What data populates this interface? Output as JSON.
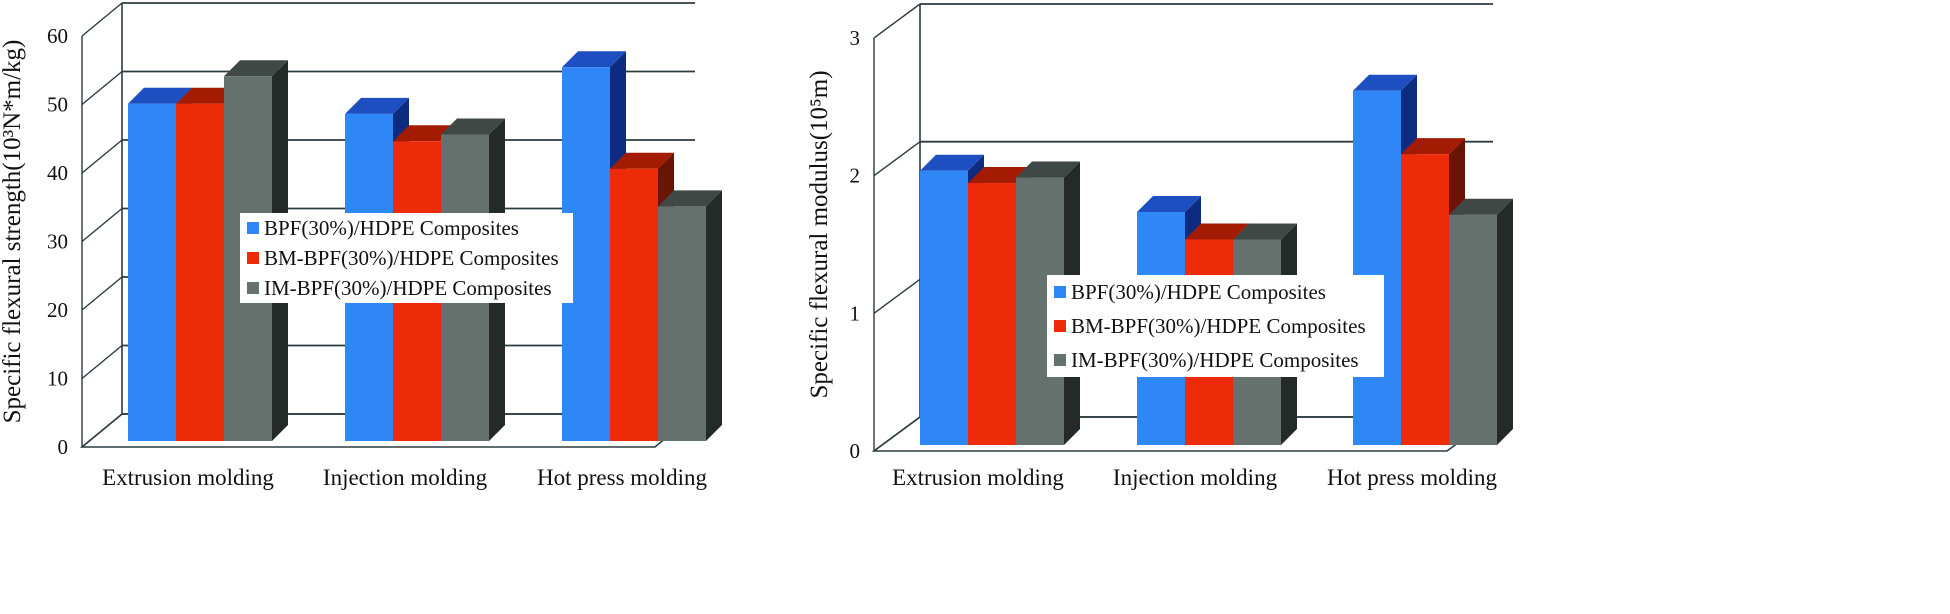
{
  "chart_data": [
    {
      "type": "bar",
      "title": "",
      "xlabel": "",
      "ylabel": "Specific flexural strength(10³N*m/kg)",
      "ylim": [
        0,
        60
      ],
      "yticks": [
        "0",
        "10",
        "20",
        "30",
        "40",
        "50",
        "60"
      ],
      "categories": [
        "Extrusion molding",
        "Injection molding",
        "Hot press molding"
      ],
      "series": [
        {
          "name": "BPF(30%)/HDPE Composites",
          "values": [
            51,
            49.5,
            56.3
          ]
        },
        {
          "name": "BM-BPF(30%)/HDPE Composites",
          "values": [
            51,
            45.5,
            41.5
          ]
        },
        {
          "name": "IM-BPF(30%)/HDPE Composites",
          "values": [
            55,
            46.5,
            36
          ]
        }
      ],
      "legend": "center"
    },
    {
      "type": "bar",
      "title": "",
      "xlabel": "",
      "ylabel": "Specific flexural modulus(10⁵m)",
      "ylim": [
        0,
        3
      ],
      "yticks": [
        "0",
        "1",
        "2",
        "3"
      ],
      "categories": [
        "Extrusion molding",
        "Injection molding",
        "Hot press molding"
      ],
      "series": [
        {
          "name": "BPF(30%)/HDPE Composites",
          "values": [
            2.08,
            1.78,
            2.66
          ]
        },
        {
          "name": "BM-BPF(30%)/HDPE Composites",
          "values": [
            1.99,
            1.58,
            2.2
          ]
        },
        {
          "name": "IM-BPF(30%)/HDPE Composites",
          "values": [
            2.03,
            1.58,
            1.76
          ]
        }
      ],
      "legend": "bottom-center"
    }
  ],
  "colors": {
    "series_front": [
      "#2f86f6",
      "#ee2b08",
      "#64716c"
    ],
    "series_top": [
      "#1d4fc0",
      "#a31b03",
      "#3f4845"
    ],
    "series_side": [
      "#0d2c80",
      "#6a1405",
      "#242a28"
    ],
    "grid": "#2c3b40",
    "floor": "#ffffff"
  }
}
